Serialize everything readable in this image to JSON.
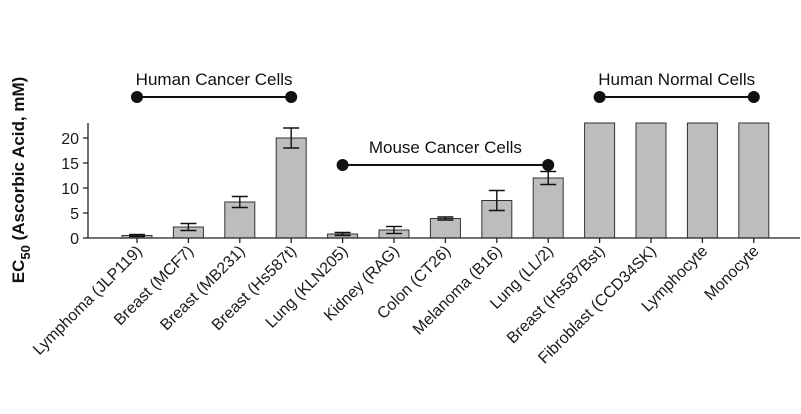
{
  "chart_data": {
    "type": "bar",
    "title": "",
    "xlabel": "",
    "ylabel_main": "EC",
    "ylabel_sub": "50",
    "ylabel_rest": " (Ascorbic Acid, mM)",
    "ylim": [
      0,
      23
    ],
    "yticks": [
      "0",
      "5",
      "10",
      "15",
      "20"
    ],
    "grid": false,
    "categories": [
      "Lymphoma (JLP119)",
      "Breast (MCF7)",
      "Breast (MB231)",
      "Breast (Hs587t)",
      "Lung (KLN205)",
      "Kidney (RAG)",
      "Colon (CT26)",
      "Melanoma (B16)",
      "Lung (LL/2)",
      "Breast (Hs587Bst)",
      "Fibroblast (CCD34SK)",
      "Lymphocyte",
      "Monocyte"
    ],
    "values": [
      0.5,
      2.2,
      7.2,
      20.0,
      0.8,
      1.6,
      3.9,
      7.5,
      12.0,
      23,
      23,
      23,
      23
    ],
    "errors": [
      0.2,
      0.7,
      1.1,
      2.0,
      0.3,
      0.7,
      0.3,
      2.0,
      1.3,
      0,
      0,
      0,
      0
    ],
    "bar_color": "#bdbdbd",
    "groups": [
      {
        "label": "Human Cancer Cells",
        "from": 0,
        "to": 3
      },
      {
        "label": "Mouse Cancer Cells",
        "from": 4,
        "to": 8
      },
      {
        "label": "Human Normal Cells",
        "from": 9,
        "to": 12
      }
    ]
  }
}
